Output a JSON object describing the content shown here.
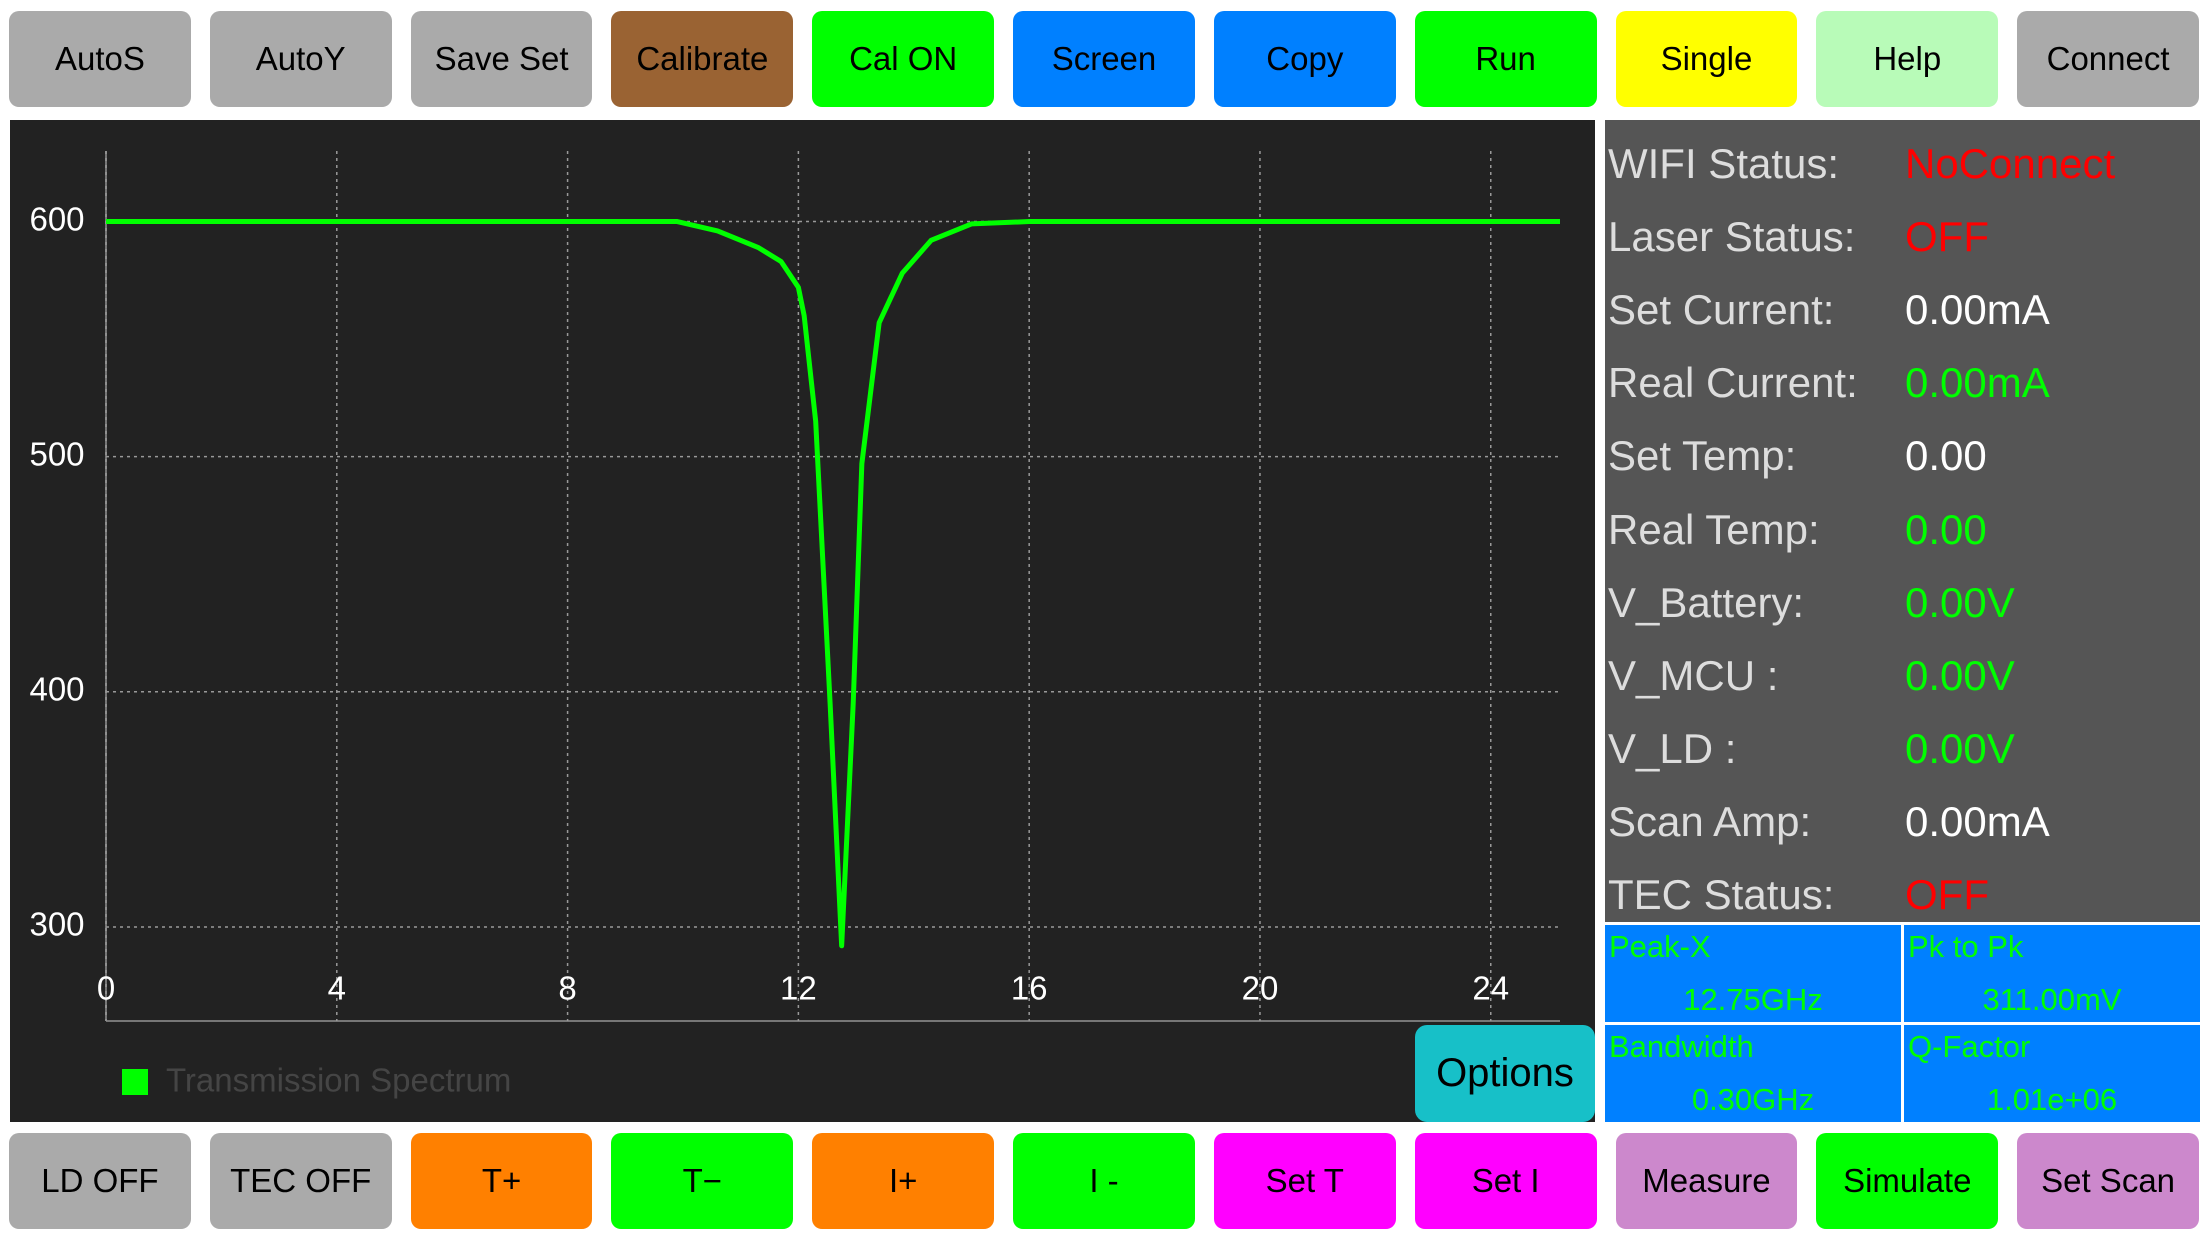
{
  "top_buttons": [
    {
      "label": "AutoS",
      "color": "#aaaaaa"
    },
    {
      "label": "AutoY",
      "color": "#aaaaaa"
    },
    {
      "label": "Save Set",
      "color": "#aaaaaa"
    },
    {
      "label": "Calibrate",
      "color": "#9a6333"
    },
    {
      "label": "Cal ON",
      "color": "#00ff00"
    },
    {
      "label": "Screen",
      "color": "#0080ff"
    },
    {
      "label": "Copy",
      "color": "#0080ff"
    },
    {
      "label": "Run",
      "color": "#00ff00"
    },
    {
      "label": "Single",
      "color": "#ffff00"
    },
    {
      "label": "Help",
      "color": "#b8fbb8"
    },
    {
      "label": "Connect",
      "color": "#aaaaaa"
    }
  ],
  "chart_data": {
    "type": "line",
    "x": [
      0,
      1,
      2,
      3,
      4,
      5,
      6,
      7,
      8,
      9,
      9.9,
      10.6,
      11.3,
      11.7,
      12.0,
      12.1,
      12.3,
      12.55,
      12.75,
      12.95,
      13.1,
      13.4,
      13.8,
      14.3,
      15,
      16,
      17,
      18,
      19,
      20,
      21,
      22,
      23,
      24,
      25.2
    ],
    "series": [
      {
        "name": "Transmission Spectrum",
        "color": "#00ff00",
        "values": [
          600,
          600,
          600,
          600,
          600,
          600,
          600,
          600,
          600,
          600,
          600,
          596,
          589,
          583,
          572,
          560,
          515,
          395,
          292,
          395,
          497,
          557,
          578,
          592,
          599,
          600,
          600,
          600,
          600,
          600,
          600,
          600,
          600,
          600,
          600
        ]
      }
    ],
    "xlim": [
      0,
      25.2
    ],
    "ylim": [
      260,
      630
    ],
    "xticks": [
      0,
      4,
      8,
      12,
      16,
      20,
      24
    ],
    "yticks": [
      300,
      400,
      500,
      600
    ],
    "grid": true
  },
  "status": [
    {
      "label": "WIFI Status:",
      "value": "NoConnect",
      "color": "#ff0000"
    },
    {
      "label": "Laser Status:",
      "value": "OFF",
      "color": "#ff0000"
    },
    {
      "label": "Set Current:",
      "value": "0.00mA",
      "color": "#ffffff"
    },
    {
      "label": "Real Current:",
      "value": "0.00mA",
      "color": "#00ff00"
    },
    {
      "label": "Set Temp:",
      "value": "0.00",
      "color": "#ffffff"
    },
    {
      "label": "Real Temp:",
      "value": "0.00",
      "color": "#00ff00"
    },
    {
      "label": "V_Battery:",
      "value": "0.00V",
      "color": "#00ff00"
    },
    {
      "label": "V_MCU :",
      "value": "0.00V",
      "color": "#00ff00"
    },
    {
      "label": "V_LD :",
      "value": "0.00V",
      "color": "#00ff00"
    },
    {
      "label": "Scan Amp:",
      "value": "0.00mA",
      "color": "#ffffff"
    },
    {
      "label": "TEC Status:",
      "value": "OFF",
      "color": "#ff0000"
    }
  ],
  "measurements": [
    {
      "label": "Peak-X",
      "value": "12.75GHz"
    },
    {
      "label": "Pk to Pk",
      "value": "311.00mV"
    },
    {
      "label": "Bandwidth",
      "value": "0.30GHz"
    },
    {
      "label": "Q-Factor",
      "value": "1.01e+06"
    }
  ],
  "options_button": "Options",
  "bottom_buttons": [
    {
      "label": "LD OFF",
      "color": "#aaaaaa"
    },
    {
      "label": "TEC OFF",
      "color": "#aaaaaa"
    },
    {
      "label": "T+",
      "color": "#ff8000"
    },
    {
      "label": "T−",
      "color": "#00ff00"
    },
    {
      "label": "I+",
      "color": "#ff8000"
    },
    {
      "label": "I -",
      "color": "#00ff00"
    },
    {
      "label": "Set T",
      "color": "#ff00ff"
    },
    {
      "label": "Set I",
      "color": "#ff00ff"
    },
    {
      "label": "Measure",
      "color": "#cc88cc"
    },
    {
      "label": "Simulate",
      "color": "#00ff00"
    },
    {
      "label": "Set Scan",
      "color": "#cc88cc"
    }
  ]
}
